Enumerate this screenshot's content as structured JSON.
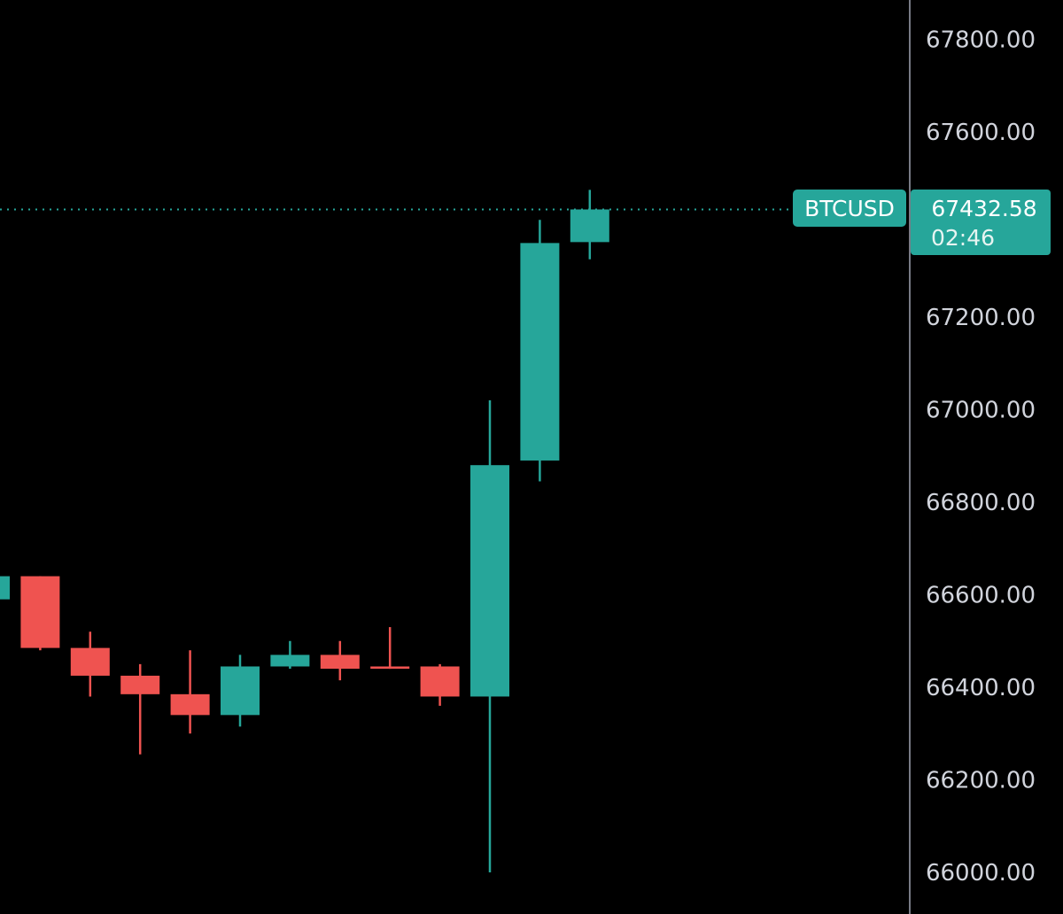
{
  "symbol": "BTCUSD",
  "last_price": "67432.58",
  "countdown": "02:46",
  "colors": {
    "background": "#000000",
    "up": "#26a69a",
    "down": "#ef5350",
    "axis_line": "#787b86",
    "axis_text": "#d1d4dc",
    "price_line": "#26a69a"
  },
  "price_axis": {
    "ticks": [
      "67800.00",
      "67600.00",
      "67200.00",
      "67000.00",
      "66800.00",
      "66600.00",
      "66400.00",
      "66200.00",
      "66000.00"
    ]
  },
  "chart_data": {
    "type": "candlestick",
    "symbol": "BTCUSD",
    "ylim": [
      65990,
      67880
    ],
    "last_price": 67432.58,
    "candles": [
      {
        "open": 66590,
        "high": 66640,
        "close": 66640,
        "low": 66590
      },
      {
        "open": 66640,
        "high": 66640,
        "low": 66480,
        "close": 66485
      },
      {
        "open": 66485,
        "high": 66520,
        "low": 66380,
        "close": 66425
      },
      {
        "open": 66425,
        "high": 66450,
        "low": 66255,
        "close": 66385
      },
      {
        "open": 66385,
        "high": 66480,
        "low": 66300,
        "close": 66340
      },
      {
        "open": 66340,
        "high": 66470,
        "low": 66315,
        "close": 66445
      },
      {
        "open": 66445,
        "high": 66500,
        "low": 66440,
        "close": 66470
      },
      {
        "open": 66470,
        "high": 66500,
        "low": 66415,
        "close": 66440
      },
      {
        "open": 66445,
        "high": 66530,
        "low": 66440,
        "close": 66440
      },
      {
        "open": 66445,
        "high": 66450,
        "low": 66360,
        "close": 66380
      },
      {
        "open": 66380,
        "high": 67020,
        "low": 66000,
        "close": 66880
      },
      {
        "open": 66890,
        "high": 67410,
        "low": 66845,
        "close": 67360
      },
      {
        "open": 67362,
        "high": 67475,
        "low": 67325,
        "close": 67432.58
      }
    ]
  }
}
